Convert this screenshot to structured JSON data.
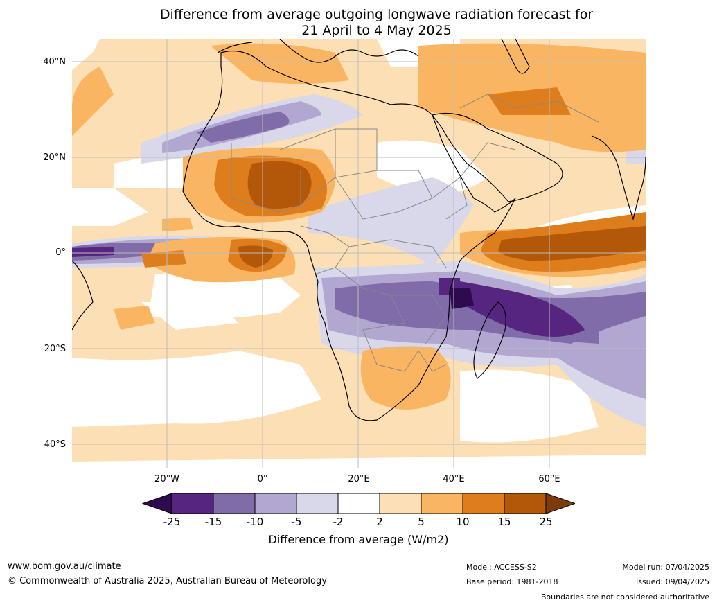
{
  "header": {
    "title_line1": "Difference from average outgoing longwave radiation forecast for",
    "title_line2": "21 April to 4 May 2025"
  },
  "map": {
    "lat_labels": [
      "40°N",
      "20°N",
      "0°",
      "20°S",
      "40°S"
    ],
    "lon_labels": [
      "20°W",
      "0°",
      "20°E",
      "40°E",
      "60°E"
    ]
  },
  "legend": {
    "ticks": [
      "-25",
      "-15",
      "-10",
      "-5",
      "-2",
      "2",
      "5",
      "10",
      "15",
      "25"
    ],
    "colors": [
      "#2e0a4f",
      "#56257f",
      "#7f6ca8",
      "#b1a7d1",
      "#d9d8ea",
      "#ffffff",
      "#fddfb5",
      "#f9b561",
      "#de7d1b",
      "#b35708",
      "#7c3b0b"
    ],
    "title": "Difference from average (W/m2)"
  },
  "footer": {
    "url": "www.bom.gov.au/climate",
    "copyright": "© Commonwealth of Australia 2025, Australian Bureau of Meteorology",
    "model": "Model: ACCESS-S2",
    "base_period": "Base period: 1981-2018",
    "model_run": "Model run: 07/04/2025",
    "issued": "Issued: 09/04/2025",
    "disclaimer": "Boundaries are not considered authoritative"
  }
}
